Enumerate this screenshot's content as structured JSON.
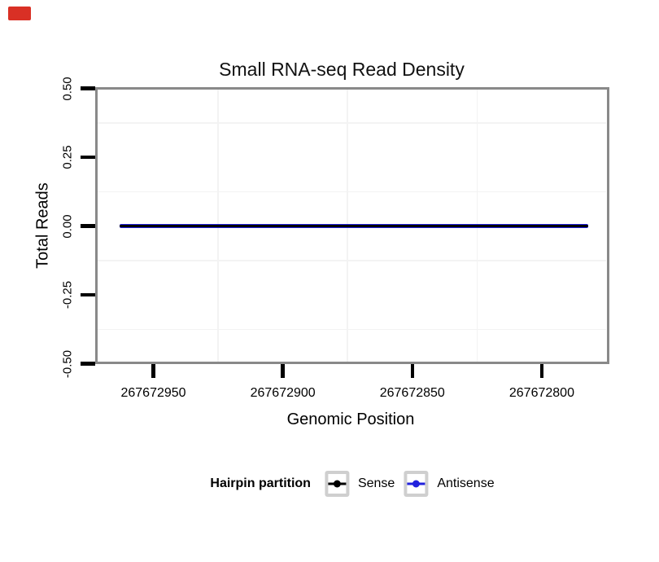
{
  "marker": {
    "color": "#d93025"
  },
  "title": "Small RNA-seq Read Density",
  "x_axis": {
    "label": "Genomic Position",
    "tick_labels": [
      "267672950",
      "267672900",
      "267672850",
      "267672800"
    ]
  },
  "y_axis": {
    "label": "Total Reads",
    "tick_labels": [
      "0.50",
      "0.25",
      "0.00",
      "-0.25",
      "-0.50"
    ]
  },
  "legend": {
    "title": "Hairpin partition",
    "items": [
      {
        "label": "Sense",
        "color": "#000000"
      },
      {
        "label": "Antisense",
        "color": "#2121dd"
      }
    ]
  },
  "chart_data": {
    "type": "line",
    "title": "Small RNA-seq Read Density",
    "xlabel": "Genomic Position",
    "ylabel": "Total Reads",
    "x_ticks": [
      267672950,
      267672900,
      267672850,
      267672800
    ],
    "x_reversed": true,
    "xlim": [
      267672972,
      267672775
    ],
    "y_ticks": [
      0.5,
      0.25,
      0.0,
      -0.25,
      -0.5
    ],
    "ylim": [
      -0.5,
      0.5
    ],
    "grid": "minor_gridlines_only",
    "grid_color": "#f3f3f3",
    "panel_border_color": "#898989",
    "legend_title": "Hairpin partition",
    "legend_position": "bottom",
    "series": [
      {
        "name": "Sense",
        "color": "#000000",
        "x_start": 267672963,
        "x_end": 267672782,
        "y": 0.0
      },
      {
        "name": "Antisense",
        "color": "#2121dd",
        "x_start": 267672963,
        "x_end": 267672782,
        "y": 0.0
      }
    ],
    "note": "Both partitions are flat at y = 0 across the whole region and overlap, appearing as one dark navy horizontal line"
  }
}
